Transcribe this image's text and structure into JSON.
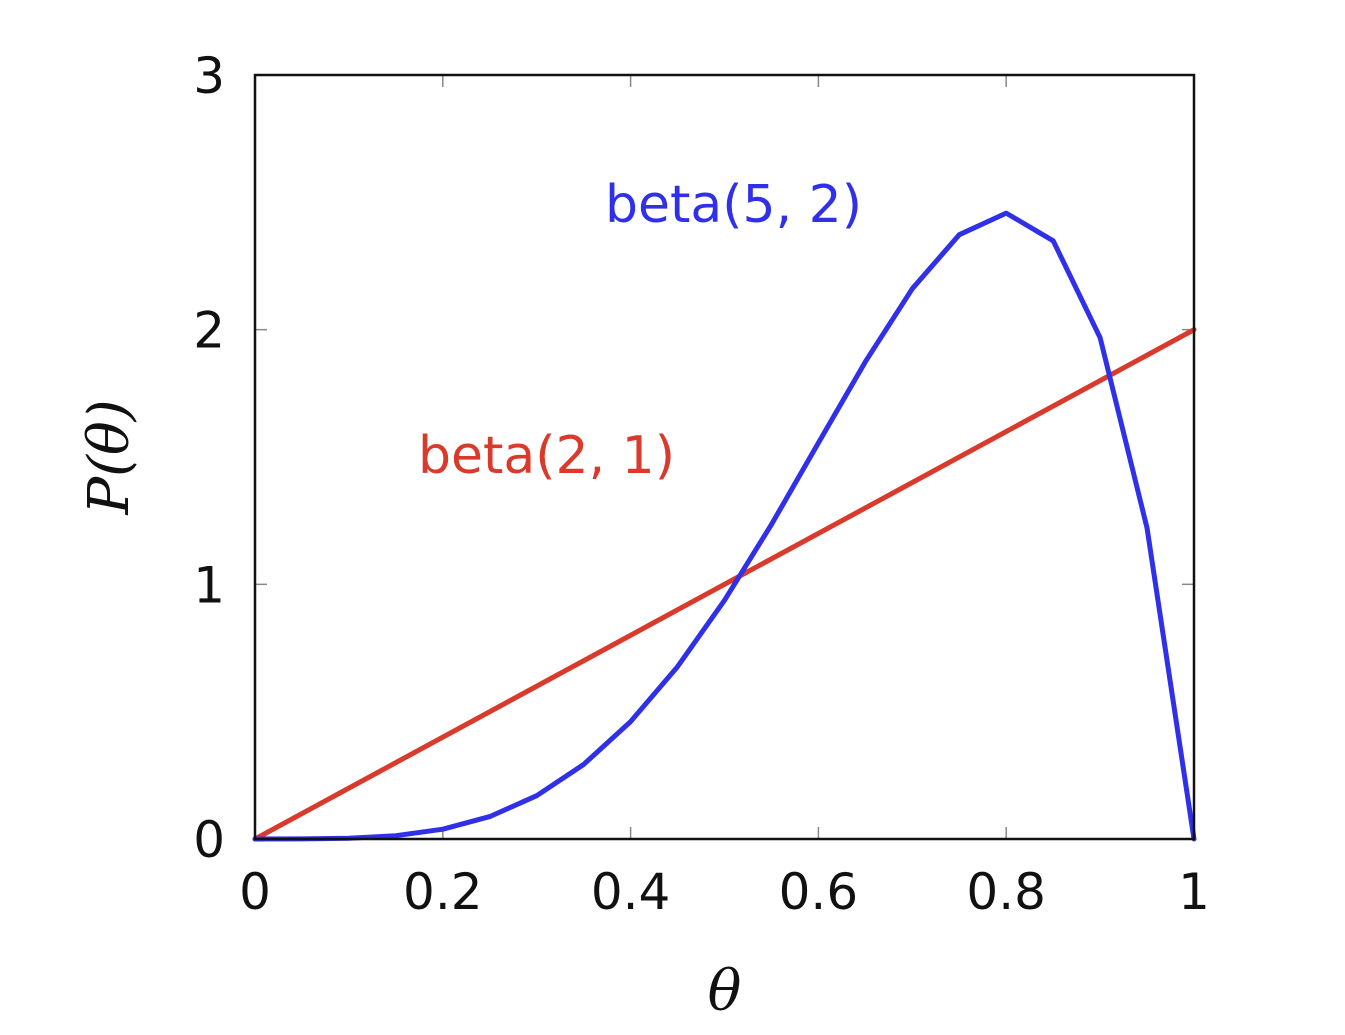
{
  "chart_data": {
    "type": "line",
    "title": "",
    "xlabel": "θ",
    "ylabel": "P(θ)",
    "xlim": [
      0,
      1
    ],
    "ylim": [
      0,
      3
    ],
    "x_ticks": [
      0,
      0.2,
      0.4,
      0.6,
      0.8,
      1
    ],
    "x_tick_labels": [
      "0",
      "0.2",
      "0.4",
      "0.6",
      "0.8",
      "1"
    ],
    "y_ticks": [
      0,
      1,
      2,
      3
    ],
    "y_tick_labels": [
      "0",
      "1",
      "2",
      "3"
    ],
    "grid": false,
    "legend": "none",
    "series": [
      {
        "name": "beta(2, 1)",
        "color": "#d93a2b",
        "x": [
          0,
          1
        ],
        "y": [
          0,
          2
        ]
      },
      {
        "name": "beta(5, 2)",
        "color": "#3030e8",
        "x": [
          0,
          0.05,
          0.1,
          0.15,
          0.2,
          0.25,
          0.3,
          0.35,
          0.4,
          0.45,
          0.5,
          0.55,
          0.6,
          0.65,
          0.7,
          0.75,
          0.8,
          0.85,
          0.9,
          0.95,
          1
        ],
        "y": [
          0,
          0.0002,
          0.0027,
          0.0129,
          0.0384,
          0.0879,
          0.1701,
          0.2926,
          0.4608,
          0.6765,
          0.9375,
          1.2353,
          1.5552,
          1.8743,
          2.1609,
          2.373,
          2.4576,
          2.3488,
          1.9683,
          1.2218,
          0
        ]
      }
    ],
    "annotations": [
      {
        "text": "beta(5, 2)",
        "color": "#3030e8"
      },
      {
        "text": "beta(2, 1)",
        "color": "#d93a2b"
      }
    ]
  }
}
